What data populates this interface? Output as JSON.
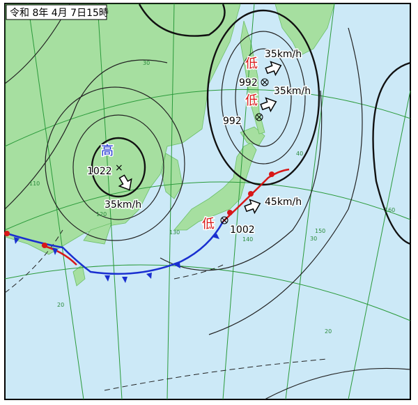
{
  "header": {
    "title": "令和 8年 4月 7日15時"
  },
  "systems": [
    {
      "label": "高",
      "pressure": "1022",
      "speed": "35km/h"
    },
    {
      "label": "低",
      "pressure": "992",
      "speed": "35km/h"
    },
    {
      "label": "低",
      "pressure": "992",
      "speed": "35km/h"
    },
    {
      "label": "低",
      "pressure": "1002",
      "speed": "45km/h"
    }
  ],
  "grid_labels": [
    "30",
    "40",
    "30",
    "20",
    "20",
    "110",
    "120",
    "130",
    "140",
    "150",
    "160"
  ]
}
